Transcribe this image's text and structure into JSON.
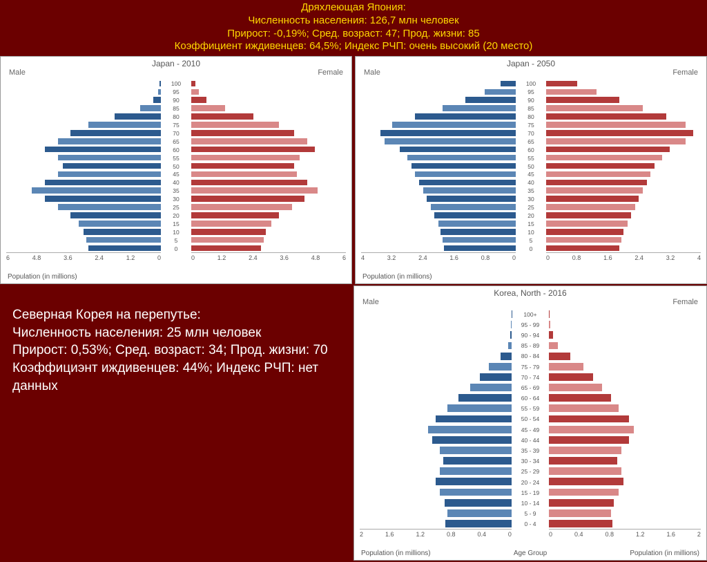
{
  "header": {
    "line1": "Дряхлеющая Япония:",
    "line2": "Численность населения: 126,7 млн человек",
    "line3": "Прирост: -0,19%; Сред. возраст: 47; Прод. жизни: 85",
    "line4": "Коэффициент иждивенцев: 64,5%; Индекс РЧП: очень высокий (20 место)"
  },
  "side_text": {
    "l1": "Северная Корея на перепутье:",
    "l2": "Численность населения: 25 млн человек",
    "l3": "Прирост: 0,53%; Сред. возраст: 34; Прод. жизни: 70",
    "l4": "Коэффициэнт иждивенцев: 44%; Индекс РЧП: нет данных"
  },
  "common": {
    "male": "Male",
    "female": "Female",
    "pop_label": "Population (in millions)",
    "age_label": "Age Group"
  },
  "style": {
    "male_colors": [
      "#2c5a8e",
      "#5b86b5"
    ],
    "female_colors": [
      "#b23a3a",
      "#d98888"
    ]
  },
  "japan2010": {
    "title": "Japan - 2010",
    "xmax": 6,
    "xticks_left": [
      "6",
      "4.8",
      "3.6",
      "2.4",
      "1.2",
      "0"
    ],
    "xticks_right": [
      "0",
      "1.2",
      "2.4",
      "3.6",
      "4.8",
      "6"
    ],
    "ages": [
      "100",
      "95",
      "90",
      "85",
      "80",
      "75",
      "70",
      "65",
      "60",
      "55",
      "50",
      "45",
      "40",
      "35",
      "30",
      "25",
      "20",
      "15",
      "10",
      "5",
      "0"
    ],
    "male": [
      0.05,
      0.1,
      0.3,
      0.8,
      1.8,
      2.8,
      3.5,
      4.0,
      4.5,
      4.0,
      3.8,
      4.0,
      4.5,
      5.0,
      4.5,
      4.0,
      3.5,
      3.2,
      3.0,
      2.9,
      2.8
    ],
    "female": [
      0.15,
      0.3,
      0.6,
      1.3,
      2.4,
      3.4,
      4.0,
      4.5,
      4.8,
      4.2,
      4.0,
      4.1,
      4.5,
      4.9,
      4.4,
      3.9,
      3.4,
      3.1,
      2.9,
      2.8,
      2.7
    ]
  },
  "japan2050": {
    "title": "Japan - 2050",
    "xmax": 4,
    "xticks_left": [
      "4",
      "3.2",
      "2.4",
      "1.6",
      "0.8",
      "0"
    ],
    "xticks_right": [
      "0",
      "0.8",
      "1.6",
      "2.4",
      "3.2",
      "4"
    ],
    "ages": [
      "100",
      "95",
      "90",
      "85",
      "80",
      "75",
      "70",
      "65",
      "60",
      "55",
      "50",
      "45",
      "40",
      "35",
      "30",
      "25",
      "20",
      "15",
      "10",
      "5",
      "0"
    ],
    "male": [
      0.4,
      0.8,
      1.3,
      1.9,
      2.6,
      3.2,
      3.5,
      3.4,
      3.0,
      2.8,
      2.7,
      2.6,
      2.5,
      2.4,
      2.3,
      2.2,
      2.1,
      2.0,
      1.95,
      1.9,
      1.85
    ],
    "female": [
      0.8,
      1.3,
      1.9,
      2.5,
      3.1,
      3.6,
      3.8,
      3.6,
      3.2,
      3.0,
      2.8,
      2.7,
      2.6,
      2.5,
      2.4,
      2.3,
      2.2,
      2.1,
      2.0,
      1.95,
      1.9
    ]
  },
  "korea2016": {
    "title": "Korea, North - 2016",
    "xmax": 2,
    "xticks_left": [
      "2",
      "1.6",
      "1.2",
      "0.8",
      "0.4",
      "0"
    ],
    "xticks_right": [
      "0",
      "0.4",
      "0.8",
      "1.2",
      "1.6",
      "2"
    ],
    "ages": [
      "100+",
      "95 - 99",
      "90 - 94",
      "85 - 89",
      "80 - 84",
      "75 - 79",
      "70 - 74",
      "65 - 69",
      "60 - 64",
      "55 - 59",
      "50 - 54",
      "45 - 49",
      "40 - 44",
      "35 - 39",
      "30 - 34",
      "25 - 29",
      "20 - 24",
      "15 - 19",
      "10 - 14",
      "5 - 9",
      "0 - 4"
    ],
    "male": [
      0.002,
      0.005,
      0.02,
      0.05,
      0.15,
      0.3,
      0.42,
      0.55,
      0.7,
      0.85,
      1.0,
      1.1,
      1.05,
      0.95,
      0.9,
      0.95,
      1.0,
      0.95,
      0.88,
      0.85,
      0.87
    ],
    "female": [
      0.01,
      0.02,
      0.05,
      0.12,
      0.28,
      0.45,
      0.58,
      0.7,
      0.82,
      0.92,
      1.05,
      1.12,
      1.05,
      0.95,
      0.9,
      0.95,
      0.98,
      0.92,
      0.85,
      0.82,
      0.84
    ]
  }
}
